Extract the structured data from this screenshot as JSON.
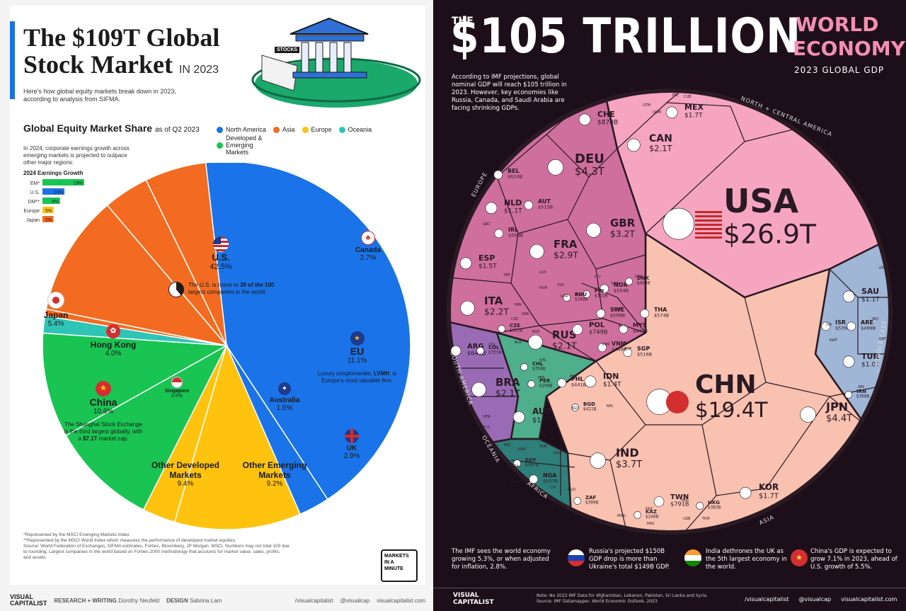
{
  "left": {
    "title_line1": "The $109T Global",
    "title_line2": "Stock Market",
    "title_year": "IN 2023",
    "subtitle": "Here's how global equity markets break down in 2023, according to analysis from SIFMA.",
    "stocks_tag": "STOCKS",
    "share_title": "Global Equity Market Share",
    "share_asof": "as of Q2 2023",
    "legend": [
      {
        "label": "North America",
        "color": "#1a73e8"
      },
      {
        "label": "Asia",
        "color": "#f26b21"
      },
      {
        "label": "Europe",
        "color": "#ffc20e"
      },
      {
        "label": "Oceania",
        "color": "#2ec4b6"
      },
      {
        "label": "Developed & Emerging Markets",
        "color": "#19c453"
      }
    ],
    "growth_note": "In 2024, corporate earnings growth across emerging markets is projected to outpace other major regions:",
    "growth_title": "2024 Earnings Growth",
    "growth": [
      {
        "label": "EM*",
        "value": 19,
        "text": "19%",
        "color": "#19c453"
      },
      {
        "label": "U.S.",
        "value": 10,
        "text": "10%",
        "color": "#1a73e8"
      },
      {
        "label": "DM**",
        "value": 8,
        "text": "8%",
        "color": "#19c453"
      },
      {
        "label": "Europe",
        "value": 5,
        "text": "5%",
        "color": "#ffc20e"
      },
      {
        "label": "Japan",
        "value": 5,
        "text": "5%",
        "color": "#f26b21"
      }
    ],
    "us_note_a": "The U.S. is home to",
    "us_note_b": "39 of the 100",
    "us_note_c": "largest companies in the world.",
    "eu_note_a": "Luxury conglomerate,",
    "eu_note_b": "LVMH",
    "eu_note_c": "is Europe's most valuable firm.",
    "china_note_a": "The Shanghai Stock Exchange is the third largest globally, with a",
    "china_note_b": "$7.1T",
    "china_note_c": "market cap.",
    "footnotes": [
      "*Represented by the MSCI Emerging Markets Index.",
      "**Represented by the MSCI World Index which measures the performance of developed market equities.",
      "Source: World Federation of Exchanges, SIFMA estimates, Forbes, Bloomberg, JP Morgan, MSCI. Numbers may not total 100 due",
      "to rounding. Largest companies in the world based on Forbes 2000 methodology that accounts for market value, sales, profits,",
      "and assets."
    ],
    "badge": [
      "MARKETS",
      "IN A",
      "MINUTE"
    ],
    "footer": {
      "brand1": "VISUAL",
      "brand2": "CAPITALIST",
      "research": "RESEARCH + WRITING",
      "research_name": "Dorothy Neufeld",
      "design": "DESIGN",
      "design_name": "Sabrina Lam",
      "social1": "/visualcapitalist",
      "social2": "@visualcap",
      "social3": "visualcapitalist.com"
    }
  },
  "chart_data": [
    {
      "type": "pie",
      "title": "Global Equity Market Share",
      "subtitle": "as of Q2 2023",
      "slices": [
        {
          "label": "U.S.",
          "value": 42.5,
          "text": "42.5%",
          "region": "North America",
          "color": "#1a73e8"
        },
        {
          "label": "Canada",
          "value": 2.7,
          "text": "2.7%",
          "region": "North America",
          "color": "#1a73e8"
        },
        {
          "label": "EU",
          "value": 11.1,
          "text": "11.1%",
          "region": "Europe",
          "color": "#ffc20e"
        },
        {
          "label": "UK",
          "value": 2.9,
          "text": "2.9%",
          "region": "Europe",
          "color": "#ffc20e"
        },
        {
          "label": "Other Developed Markets",
          "value": 9.4,
          "text": "9.4%",
          "region": "Developed & Emerging Markets",
          "color": "#19c453"
        },
        {
          "label": "Other Emerging Markets",
          "value": 9.2,
          "text": "9.2%",
          "region": "Developed & Emerging Markets",
          "color": "#19c453"
        },
        {
          "label": "Australia",
          "value": 1.5,
          "text": "1.5%",
          "region": "Oceania",
          "color": "#2ec4b6"
        },
        {
          "label": "Singapore",
          "value": 0.6,
          "text": "0.6%",
          "region": "Asia",
          "color": "#f26b21"
        },
        {
          "label": "China",
          "value": 10.6,
          "text": "10.6%",
          "region": "Asia",
          "color": "#f26b21"
        },
        {
          "label": "Hong Kong",
          "value": 4.0,
          "text": "4.0%",
          "region": "Asia",
          "color": "#f26b21"
        },
        {
          "label": "Japan",
          "value": 5.4,
          "text": "5.4%",
          "region": "Asia",
          "color": "#f26b21"
        }
      ]
    },
    {
      "type": "bar",
      "title": "2024 Earnings Growth",
      "categories": [
        "EM*",
        "U.S.",
        "DM**",
        "Europe",
        "Japan"
      ],
      "values": [
        19,
        10,
        8,
        5,
        5
      ]
    },
    {
      "type": "treemap",
      "title": "WORLD ECONOMY",
      "subtitle": "2023 GLOBAL GDP",
      "total": "$105 TRILLION",
      "regions": [
        "NORTH + CENTRAL AMERICA",
        "MIDDLE EAST",
        "ASIA",
        "AFRICA",
        "OCEANIA",
        "SOUTH AMERICA",
        "EUROPE"
      ],
      "countries": [
        {
          "code": "USA",
          "gdp": "$26.9T",
          "region": "North + Central America"
        },
        {
          "code": "CHN",
          "gdp": "$19.4T",
          "region": "Asia"
        },
        {
          "code": "JPN",
          "gdp": "$4.4T",
          "region": "Asia"
        },
        {
          "code": "DEU",
          "gdp": "$4.3T",
          "region": "Europe"
        },
        {
          "code": "IND",
          "gdp": "$3.7T",
          "region": "Asia"
        },
        {
          "code": "GBR",
          "gdp": "$3.2T",
          "region": "Europe"
        },
        {
          "code": "FRA",
          "gdp": "$2.9T",
          "region": "Europe"
        },
        {
          "code": "ITA",
          "gdp": "$2.2T",
          "region": "Europe"
        },
        {
          "code": "CAN",
          "gdp": "$2.1T",
          "region": "North + Central America"
        },
        {
          "code": "RUS",
          "gdp": "$2.1T",
          "region": "Europe"
        },
        {
          "code": "BRA",
          "gdp": "$2.1T",
          "region": "South America"
        },
        {
          "code": "MEX",
          "gdp": "$1.7T",
          "region": "North + Central America"
        },
        {
          "code": "AUS",
          "gdp": "$1.7T",
          "region": "Oceania"
        },
        {
          "code": "KOR",
          "gdp": "$1.7T",
          "region": "Asia"
        },
        {
          "code": "ESP",
          "gdp": "$1.5T",
          "region": "Europe"
        },
        {
          "code": "IDN",
          "gdp": "$1.4T",
          "region": "Asia"
        },
        {
          "code": "NLD",
          "gdp": "$1.1T",
          "region": "Europe"
        },
        {
          "code": "SAU",
          "gdp": "$1.1T",
          "region": "Middle East"
        },
        {
          "code": "TUR",
          "gdp": "$1.0T",
          "region": "Middle East"
        },
        {
          "code": "CHE",
          "gdp": "$870B",
          "region": "Europe"
        },
        {
          "code": "TWN",
          "gdp": "$791B",
          "region": "Asia"
        },
        {
          "code": "POL",
          "gdp": "$749B",
          "region": "Europe"
        },
        {
          "code": "ARG",
          "gdp": "$641B",
          "region": "South America"
        },
        {
          "code": "BEL",
          "gdp": "$624B",
          "region": "Europe"
        },
        {
          "code": "SWE",
          "gdp": "$599B",
          "region": "Europe"
        },
        {
          "code": "IRL",
          "gdp": "$594B",
          "region": "Europe"
        },
        {
          "code": "THA",
          "gdp": "$574B",
          "region": "Asia"
        },
        {
          "code": "NOR",
          "gdp": "$554B",
          "region": "Europe"
        },
        {
          "code": "ISR",
          "gdp": "$539B",
          "region": "Middle East"
        },
        {
          "code": "SGP",
          "gdp": "$516B",
          "region": "Asia"
        },
        {
          "code": "AUT",
          "gdp": "$515B",
          "region": "Europe"
        },
        {
          "code": "NGA",
          "gdp": "$507B",
          "region": "Africa"
        },
        {
          "code": "ARE",
          "gdp": "$499B",
          "region": "Middle East"
        },
        {
          "code": "VNM",
          "gdp": "$449B",
          "region": "Asia"
        },
        {
          "code": "MYS",
          "gdp": "$447B",
          "region": "Asia"
        },
        {
          "code": "PHL",
          "gdp": "$441B",
          "region": "Asia"
        },
        {
          "code": "BGD",
          "gdp": "$421B",
          "region": "Asia"
        },
        {
          "code": "DNK",
          "gdp": "$406B",
          "region": "Europe"
        },
        {
          "code": "EGY",
          "gdp": "$387B",
          "region": "Africa"
        },
        {
          "code": "HKG",
          "gdp": "$383B",
          "region": "Asia"
        },
        {
          "code": "CHL",
          "gdp": "$358B",
          "region": "South America"
        },
        {
          "code": "COL",
          "gdp": "$335B",
          "region": "South America"
        },
        {
          "code": "FIN",
          "gdp": "$302B",
          "region": "Europe"
        },
        {
          "code": "ZAF",
          "gdp": "$399B",
          "region": "Africa"
        },
        {
          "code": "IRN",
          "gdp": "$368B",
          "region": "Middle East"
        },
        {
          "code": "CZE",
          "gdp": "$331B",
          "region": "Europe"
        },
        {
          "code": "ROU",
          "gdp": "$348B",
          "region": "Europe"
        },
        {
          "code": "KAZ",
          "gdp": "$246B",
          "region": "Asia"
        },
        {
          "code": "PER",
          "gdp": "$268B",
          "region": "South America"
        }
      ]
    }
  ],
  "right": {
    "the": "THE",
    "big": "$105 TRILLION",
    "world": "WORLD",
    "economy": "ECONOMY",
    "gdp_sub": "2023 GLOBAL GDP",
    "intro": "According to IMF projections, global nominal GDP will reach $105 trillion in 2023. However, key economies like Russia, Canada, and Saudi Arabia are facing shrinking GDPs.",
    "insights": [
      "The IMF sees the world economy growing 5.3%, or when adjusted for inflation, 2.8%.",
      "Russia's projected $150B GDP drop is more than Ukraine's total $149B GDP.",
      "India dethrones the UK as the 5th largest economy in the world.",
      "China's GDP is expected to grow 7.1% in 2023, ahead of U.S. growth of 5.5%."
    ],
    "note1": "Note: No 2023 IMF Data for Afghanistan, Lebanon, Pakistan, Sri Lanka and Syria.",
    "note2": "Source: IMF Datamapper, World Economic Outlook, 2023",
    "footer": {
      "brand1": "VISUAL",
      "brand2": "CAPITALIST",
      "social1": "/visualcapitalist",
      "social2": "@visualcap",
      "social3": "visualcapitalist.com"
    },
    "small_labels": [
      "SWE",
      "FIN",
      "NOR",
      "DNK",
      "ISR",
      "IRQ",
      "KWT",
      "QAT",
      "OMN",
      "IRN",
      "MYS",
      "SGP",
      "VNM",
      "PHL",
      "BGD",
      "NPL",
      "HKG",
      "MAC",
      "UZB",
      "TKM",
      "MNG",
      "KAZ",
      "KEN",
      "ETH",
      "MAR",
      "DZA",
      "TUN",
      "GHA",
      "CIV",
      "AGO",
      "CHL",
      "PER",
      "VEN",
      "ECU",
      "COL",
      "NZL",
      "PRT",
      "GRC",
      "CZE",
      "HUN",
      "SVK",
      "ROU",
      "UKR",
      "BLR",
      "BGR",
      "LUX",
      "SRB",
      "HRV",
      "LTU",
      "PAN",
      "CRI",
      "GTM",
      "DOM",
      "PRI",
      "CUB"
    ]
  }
}
